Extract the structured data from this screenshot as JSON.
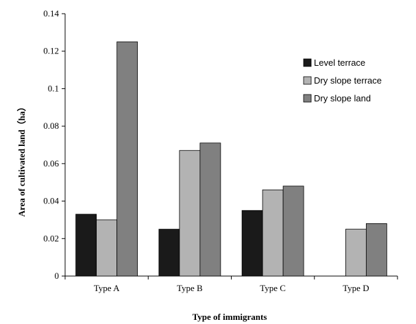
{
  "chart_data": {
    "type": "bar",
    "xlabel": "Type of immigrants",
    "ylabel": "Area of cultivated land（ha）",
    "ylim": [
      0,
      0.14
    ],
    "yticks": [
      "0",
      "0.02",
      "0.04",
      "0.06",
      "0.08",
      "0.1",
      "0.12",
      "0.14"
    ],
    "categories": [
      "Type A",
      "Type B",
      "Type C",
      "Type D"
    ],
    "series": [
      {
        "name": "Level terrace",
        "color": "#1a1a1a",
        "values": [
          0.033,
          0.025,
          0.035,
          0
        ]
      },
      {
        "name": "Dry slope terrace",
        "color": "#b3b3b3",
        "values": [
          0.03,
          0.067,
          0.046,
          0.025
        ]
      },
      {
        "name": "Dry slope land",
        "color": "#808080",
        "values": [
          0.125,
          0.071,
          0.048,
          0.028
        ]
      }
    ],
    "legend_position": "right",
    "grid": false
  }
}
